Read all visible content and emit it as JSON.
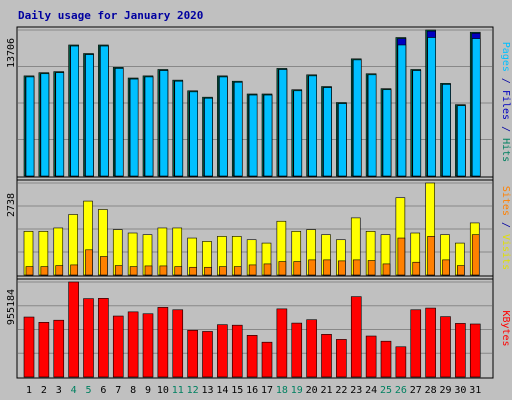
{
  "chart_data": {
    "type": "bar",
    "title": "Daily usage for January 2020",
    "x": [
      "1",
      "2",
      "3",
      "4",
      "5",
      "6",
      "7",
      "8",
      "9",
      "10",
      "11",
      "12",
      "13",
      "14",
      "15",
      "16",
      "17",
      "18",
      "19",
      "20",
      "21",
      "22",
      "23",
      "24",
      "25",
      "26",
      "27",
      "28",
      "29",
      "30",
      "31"
    ],
    "weekend_days": [
      "4",
      "5",
      "11",
      "12",
      "18",
      "19",
      "25",
      "26"
    ],
    "panels": [
      {
        "id": "pages-files-hits",
        "ymax_label": "13706",
        "ymax": 13706,
        "side_label_parts": [
          {
            "text": "Pages",
            "color": "#00c0ff"
          },
          {
            "text": " / ",
            "color": "#0000a0"
          },
          {
            "text": "Files",
            "color": "#0000c0"
          },
          {
            "text": " / ",
            "color": "#0000a0"
          },
          {
            "text": "Hits",
            "color": "#008060"
          }
        ],
        "series": [
          {
            "name": "Hits",
            "color": "#006b4f",
            "values": [
              9400,
              9700,
              9800,
              12300,
              11500,
              12300,
              10200,
              9200,
              9400,
              10000,
              9000,
              8000,
              7400,
              9400,
              8900,
              7700,
              7700,
              10100,
              8100,
              9500,
              8400,
              6900,
              11000,
              9600,
              8200,
              13000,
              10000,
              13706,
              8700,
              6700,
              13500
            ]
          },
          {
            "name": "Files",
            "color": "#0000c0",
            "values": [
              9300,
              9600,
              9700,
              12200,
              11400,
              12200,
              10100,
              9100,
              9300,
              9900,
              8900,
              7900,
              7300,
              9300,
              8800,
              7600,
              7600,
              10000,
              8000,
              9400,
              8300,
              6800,
              10900,
              9500,
              8100,
              12900,
              9900,
              13600,
              8600,
              6600,
              13400
            ]
          },
          {
            "name": "Pages",
            "color": "#00c0ff",
            "values": [
              9300,
              9600,
              9700,
              12200,
              11400,
              12200,
              10100,
              9100,
              9300,
              9900,
              8900,
              7900,
              7300,
              9300,
              8800,
              7600,
              7600,
              10000,
              8000,
              9400,
              8300,
              6800,
              10900,
              9500,
              8100,
              12300,
              9900,
              13000,
              8600,
              6600,
              12900
            ]
          }
        ]
      },
      {
        "id": "visits-sites",
        "ymax_label": "2738",
        "ymax": 2738,
        "side_label_parts": [
          {
            "text": "Sites",
            "color": "#ff8000"
          },
          {
            "text": " / ",
            "color": "#0000a0"
          },
          {
            "text": "Visits",
            "color": "#e0e000"
          }
        ],
        "series": [
          {
            "name": "Visits",
            "color": "#ffff00",
            "values": [
              1300,
              1300,
              1400,
              1800,
              2200,
              1950,
              1350,
              1250,
              1200,
              1400,
              1400,
              1100,
              1000,
              1150,
              1150,
              1050,
              950,
              1600,
              1300,
              1350,
              1200,
              1050,
              1700,
              1300,
              1200,
              2300,
              1250,
              2738,
              1200,
              950,
              1550
            ]
          },
          {
            "name": "Sites",
            "color": "#ff8000",
            "values": [
              250,
              250,
              280,
              300,
              750,
              550,
              280,
              250,
              270,
              270,
              250,
              230,
              230,
              250,
              250,
              300,
              330,
              400,
              400,
              450,
              450,
              420,
              450,
              430,
              330,
              1100,
              380,
              1150,
              450,
              280,
              1200
            ]
          }
        ]
      },
      {
        "id": "kbytes",
        "ymax_label": "955184",
        "ymax": 955184,
        "side_label_parts": [
          {
            "text": "KBytes",
            "color": "#ff0000"
          }
        ],
        "series": [
          {
            "name": "KBytes",
            "color": "#ff0000",
            "values": [
              603000,
              550000,
              571000,
              955184,
              788000,
              791000,
              613000,
              655000,
              636000,
              700000,
              676000,
              470000,
              458000,
              526000,
              521000,
              419000,
              350000,
              685000,
              542000,
              576000,
              429000,
              378000,
              808000,
              412000,
              360000,
              304000,
              676000,
              693000,
              607000,
              539000,
              533000
            ]
          }
        ]
      }
    ]
  }
}
